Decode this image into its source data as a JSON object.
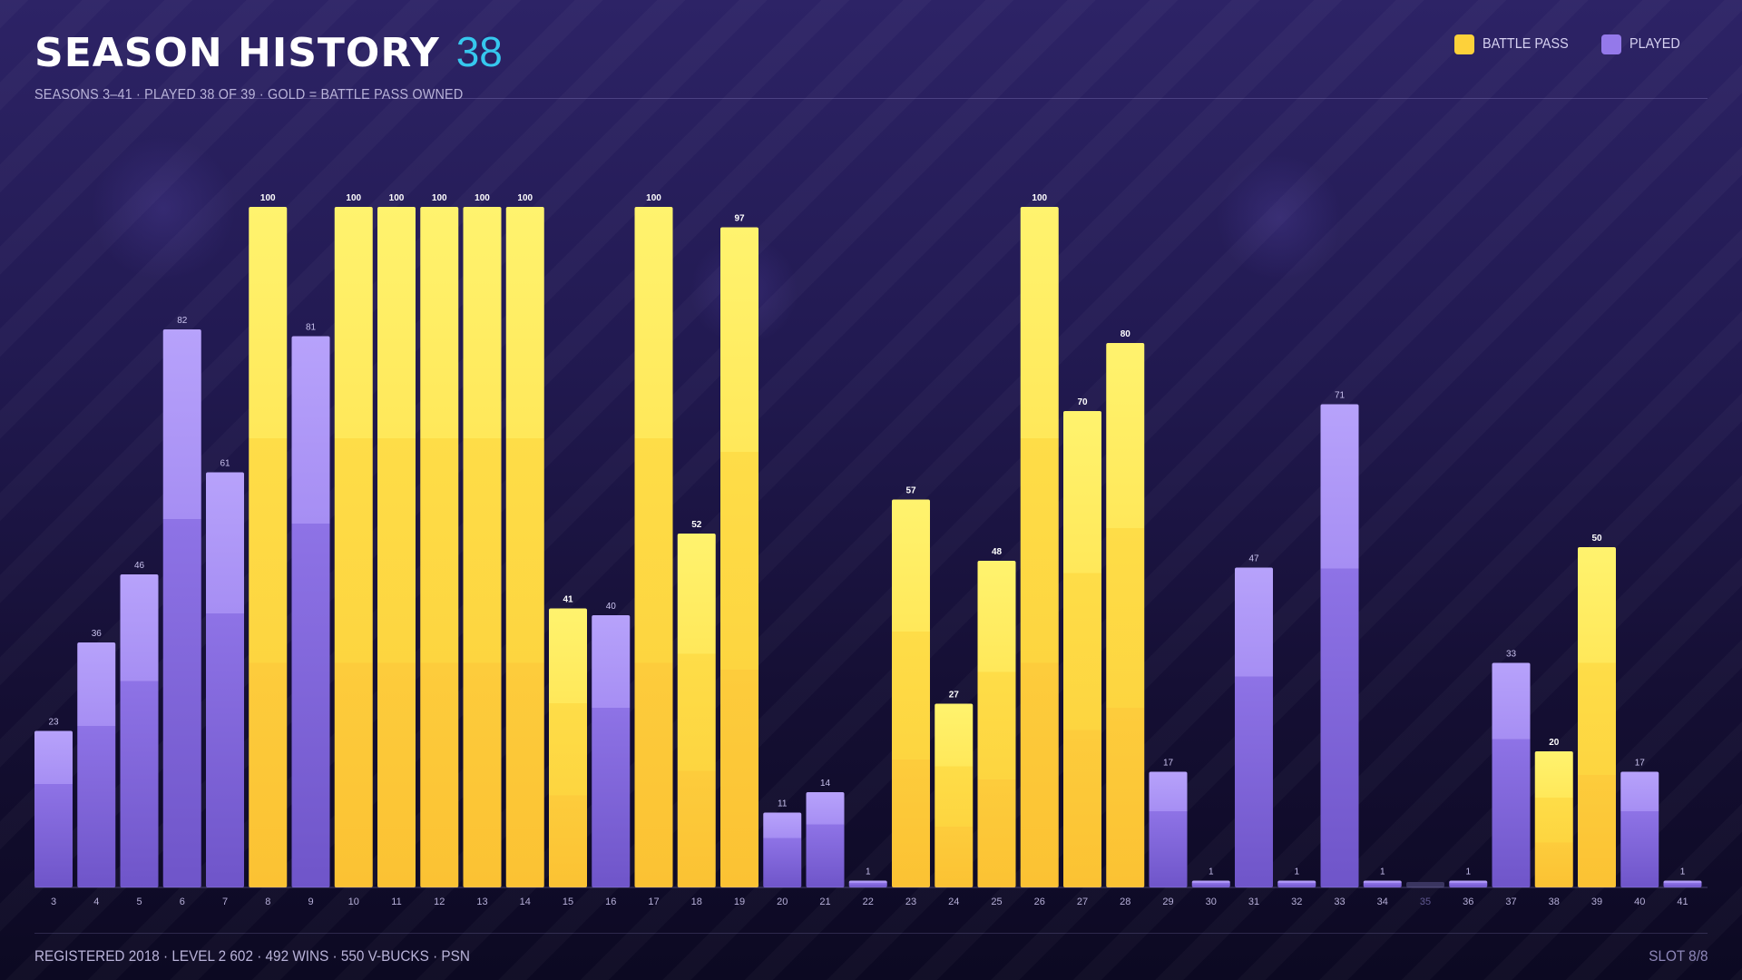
{
  "header": {
    "title": "SEASON HISTORY",
    "count": "38",
    "subtitle": "SEASONS 3–41  ·  PLAYED 38 OF 39  ·  GOLD = BATTLE PASS OWNED"
  },
  "legend": {
    "battle_pass_label": "BATTLE PASS",
    "played_label": "PLAYED"
  },
  "footer": {
    "info": "REGISTERED 2018  ·  LEVEL 2 602  ·  492 WINS  ·  550 V-BUCKS  ·  PSN",
    "slot": "SLOT 8/8"
  },
  "colors": {
    "battle_pass": "#fdd13a",
    "played": "#9479ea",
    "not_played": "#3a3560",
    "accent": "#36c8ee"
  },
  "chart_data": {
    "type": "bar",
    "categories": [
      "3",
      "4",
      "5",
      "6",
      "7",
      "8",
      "9",
      "10",
      "11",
      "12",
      "13",
      "14",
      "15",
      "16",
      "17",
      "18",
      "19",
      "20",
      "21",
      "22",
      "23",
      "24",
      "25",
      "26",
      "27",
      "28",
      "29",
      "30",
      "31",
      "32",
      "33",
      "34",
      "35",
      "36",
      "37",
      "38",
      "39",
      "40",
      "41"
    ],
    "values": [
      23,
      36,
      46,
      82,
      61,
      100,
      81,
      100,
      100,
      100,
      100,
      100,
      41,
      40,
      100,
      52,
      97,
      11,
      14,
      1,
      57,
      27,
      48,
      100,
      70,
      80,
      17,
      1,
      47,
      1,
      71,
      1,
      0,
      1,
      33,
      20,
      50,
      17,
      1
    ],
    "battle_pass": [
      false,
      false,
      false,
      false,
      false,
      true,
      false,
      true,
      true,
      true,
      true,
      true,
      true,
      false,
      true,
      true,
      true,
      false,
      false,
      false,
      true,
      true,
      true,
      true,
      true,
      true,
      false,
      false,
      false,
      false,
      false,
      false,
      false,
      false,
      false,
      true,
      true,
      false,
      false
    ],
    "played": [
      true,
      true,
      true,
      true,
      true,
      true,
      true,
      true,
      true,
      true,
      true,
      true,
      true,
      true,
      true,
      true,
      true,
      true,
      true,
      true,
      true,
      true,
      true,
      true,
      true,
      true,
      true,
      true,
      true,
      true,
      true,
      true,
      false,
      true,
      true,
      true,
      true,
      true,
      true
    ],
    "ylim": [
      0,
      100
    ],
    "legend_position": "top-right",
    "grid": false
  }
}
